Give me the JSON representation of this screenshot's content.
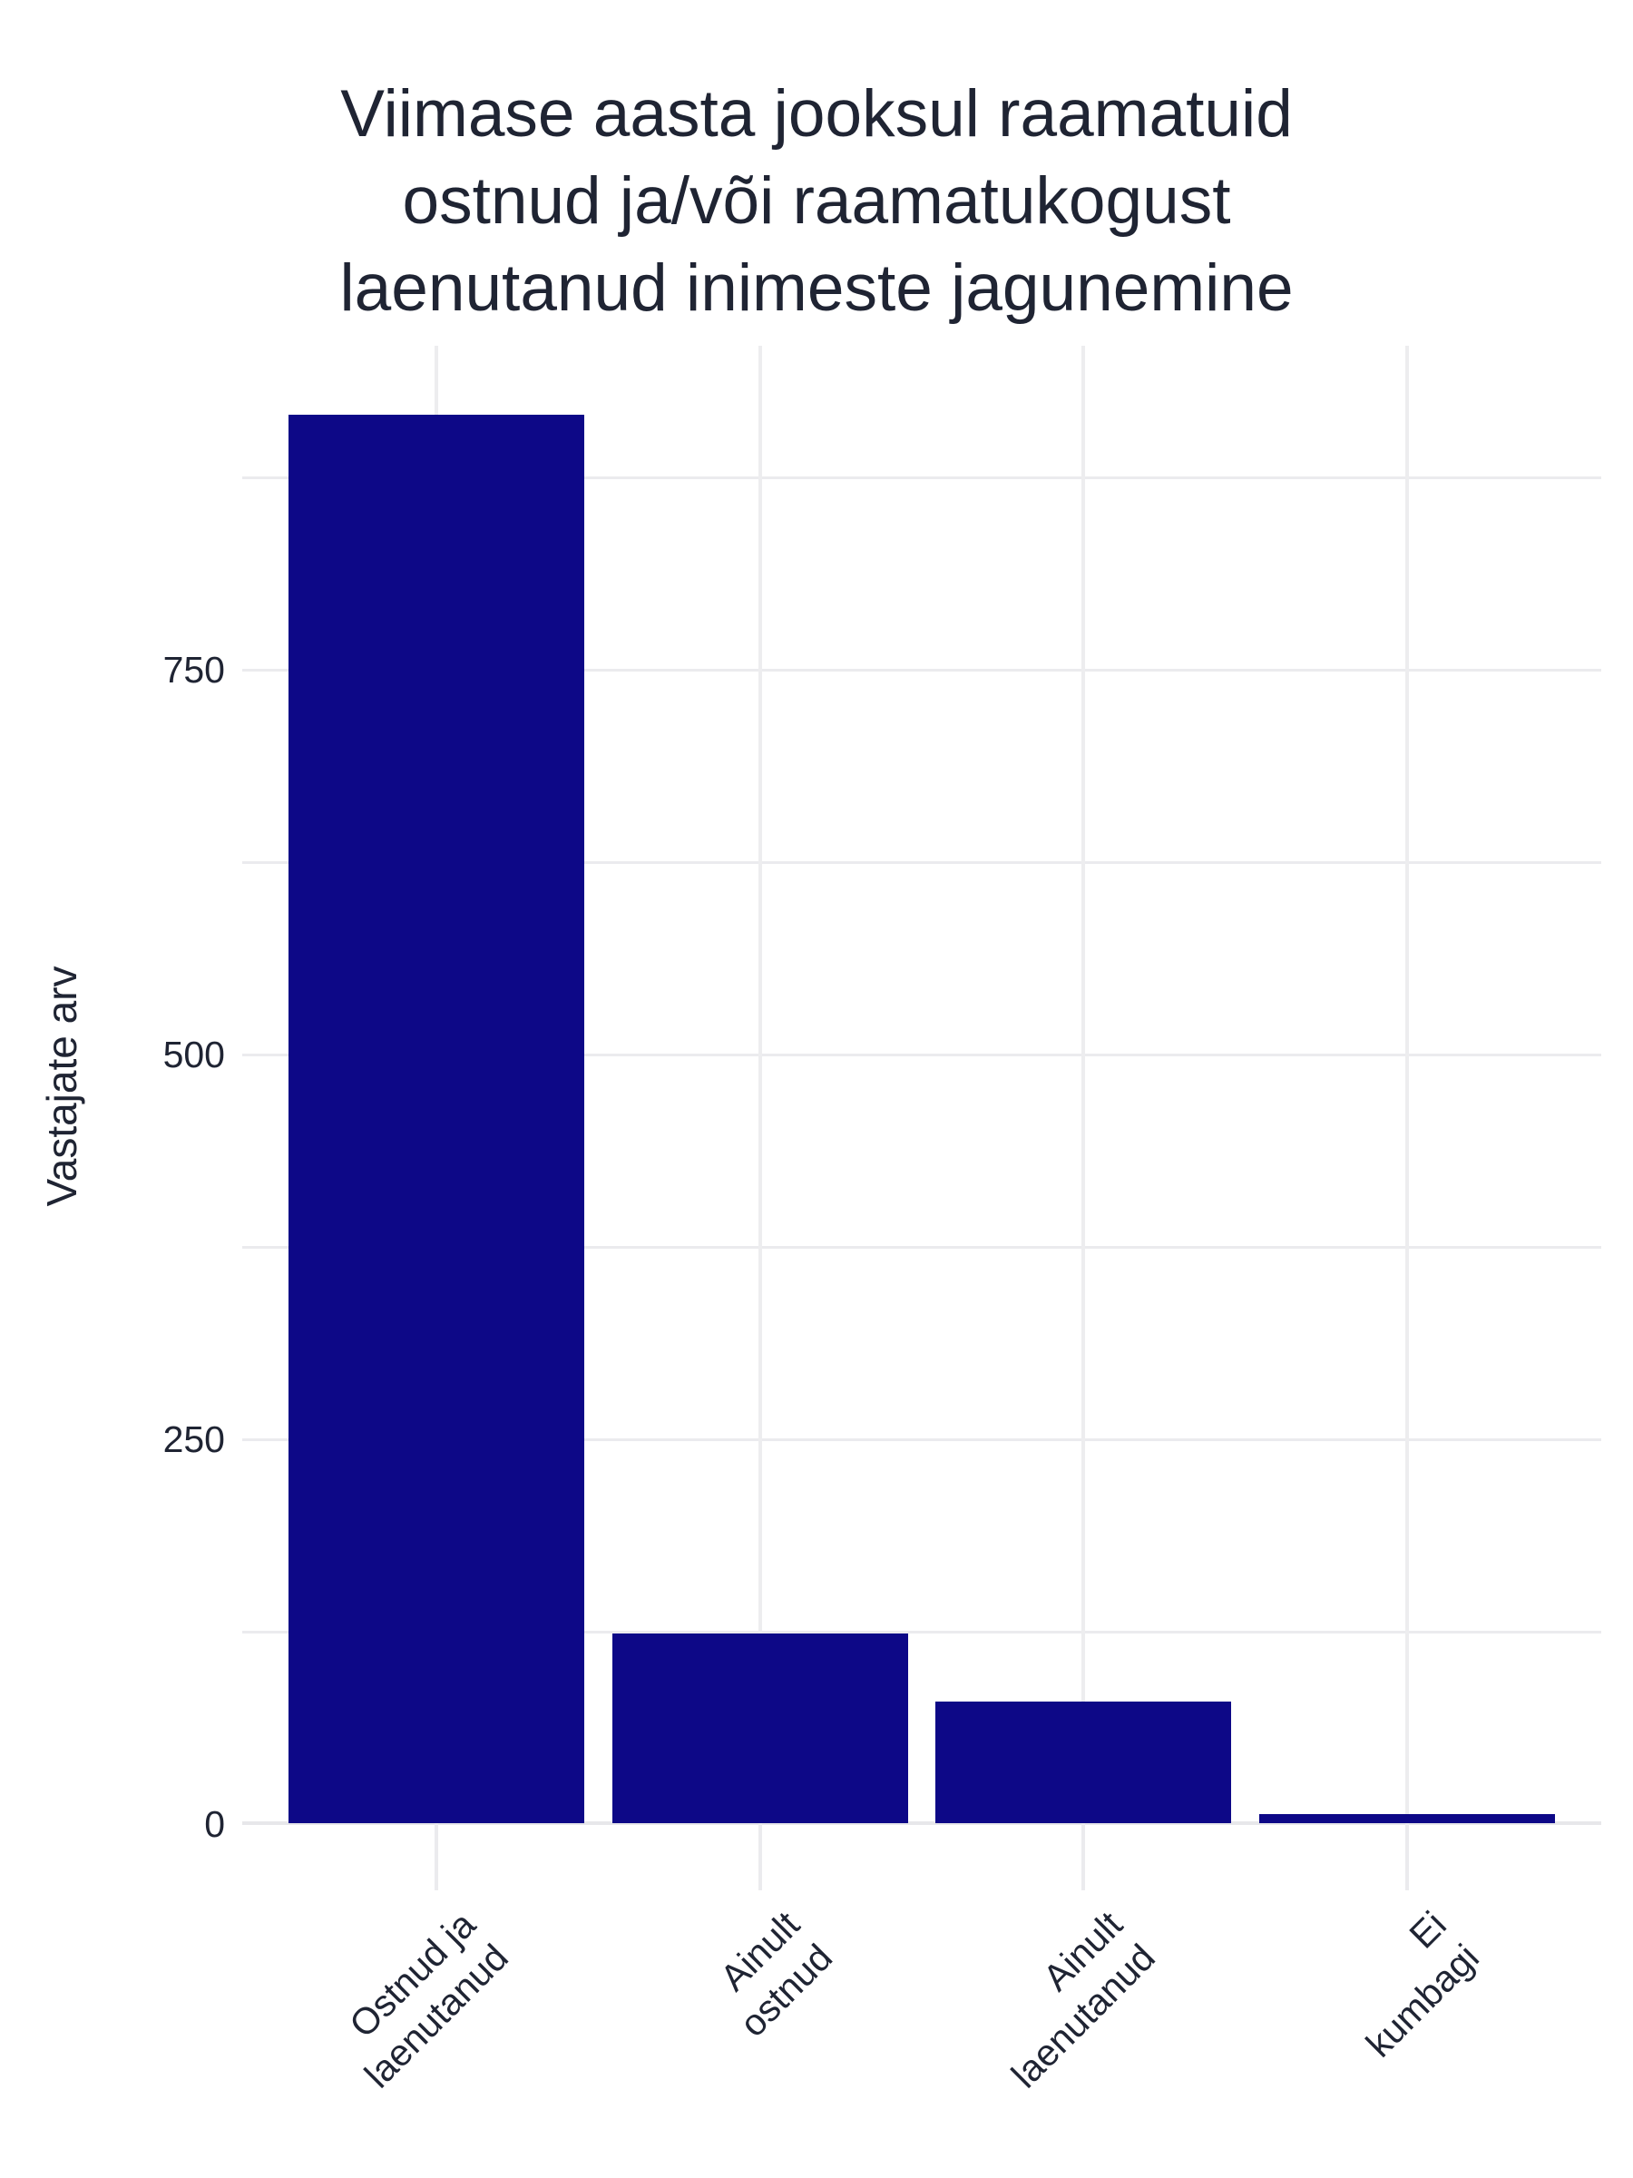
{
  "chart_data": {
    "type": "bar",
    "title": "Viimase aasta jooksul raamatuid ostnud ja/või raamatukogust laenutanud inimeste jagunemine",
    "title_lines": [
      "Viimase aasta jooksul raamatuid",
      "ostnud ja/või raamatukogust",
      "laenutanud inimeste jagunemine"
    ],
    "ylabel": "Vastajate arv",
    "xlabel": "",
    "categories": [
      "Ostnud ja laenutanud",
      "Ainult ostnud",
      "Ainult laenutanud",
      "Ei kumbagi"
    ],
    "category_label_lines": [
      [
        "Ostnud ja",
        "laenutanud"
      ],
      [
        "Ainult",
        "ostnud"
      ],
      [
        "Ainult",
        "laenutanud"
      ],
      [
        "Ei",
        "kumbagi"
      ]
    ],
    "values": [
      915,
      123,
      79,
      6
    ],
    "ylim": [
      0,
      960
    ],
    "yticks": [
      0,
      250,
      500,
      750
    ],
    "minor_grid_step": 125,
    "grid": "horizontal major+minor, vertical at category centers",
    "legend_position": "none",
    "bar_color": "#0D0887",
    "text_color": "#1F2433",
    "grid_color": "#EBEBEE",
    "background_color": "#FFFFFF"
  }
}
